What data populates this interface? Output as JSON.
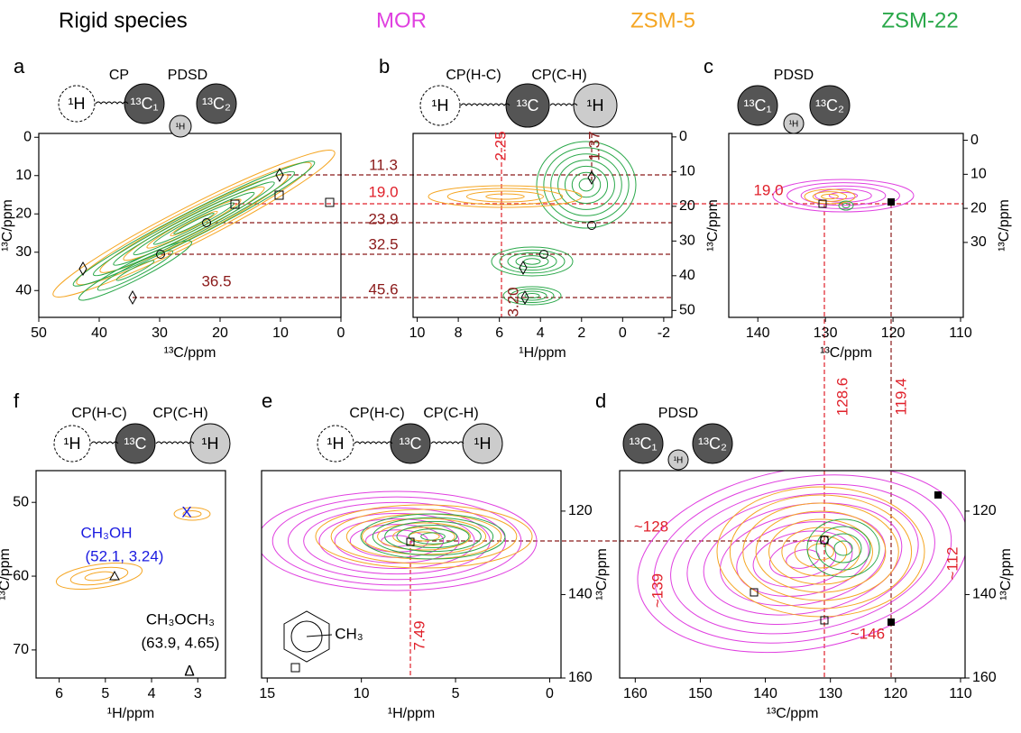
{
  "header": {
    "title": "Rigid species",
    "species": [
      {
        "name": "MOR",
        "color": "#e040e0"
      },
      {
        "name": "ZSM-5",
        "color": "#f5a623"
      },
      {
        "name": "ZSM-22",
        "color": "#2aa84a"
      }
    ]
  },
  "panels": [
    {
      "letter": "a",
      "scheme": [
        "CP",
        "PDSD"
      ],
      "nuclei": [
        "¹H",
        "¹³C₁",
        "¹H",
        "¹³C₂"
      ],
      "xlabel": "¹³C/ppm",
      "ylabel": "¹³C/ppm",
      "xlim": [
        50,
        0
      ],
      "ylim": [
        -1,
        47
      ],
      "xticks": [
        50,
        40,
        30,
        20,
        10,
        0
      ],
      "yticks": [
        0,
        10,
        20,
        30,
        40
      ],
      "annotations": [
        "36.5",
        "11.3",
        "19.0",
        "23.9",
        "32.5",
        "45.6"
      ]
    },
    {
      "letter": "b",
      "scheme": [
        "CP(H-C)",
        "CP(C-H)"
      ],
      "nuclei": [
        "¹H",
        "¹³C",
        "¹H"
      ],
      "xlabel": "¹H/ppm",
      "ylabel": "¹³C/ppm",
      "xlim": [
        10.2,
        -2.4
      ],
      "ylim": [
        -1,
        52
      ],
      "xticks": [
        10,
        8,
        6,
        4,
        2,
        0,
        -2
      ],
      "yticks": [
        0,
        10,
        20,
        30,
        40,
        50
      ],
      "annotations": [
        "2.25",
        "1.37",
        "3.20"
      ]
    },
    {
      "letter": "c",
      "scheme": [
        "PDSD"
      ],
      "nuclei": [
        "¹³C₁",
        "¹H",
        "¹³C₂"
      ],
      "xlabel": "¹³C/ppm",
      "ylabel": "¹³C/ppm",
      "xlim": [
        144.3,
        109.6
      ],
      "ylim": [
        -2,
        52
      ],
      "xticks": [
        140,
        130,
        120,
        110
      ],
      "yticks": [
        0,
        10,
        20,
        30
      ],
      "annotations": [
        "19.0",
        "128.6",
        "119.4"
      ]
    },
    {
      "letter": "f",
      "scheme": [
        "CP(H-C)",
        "CP(C-H)"
      ],
      "nuclei": [
        "¹H",
        "¹³C",
        "¹H"
      ],
      "xlabel": "¹H/ppm",
      "ylabel": "¹³C/ppm",
      "xlim": [
        6.5,
        2.4
      ],
      "ylim": [
        45.7,
        73.8
      ],
      "xticks": [
        6,
        5,
        4,
        3
      ],
      "yticks": [
        50,
        60,
        70
      ],
      "annotations": [
        "CH₃OH",
        "(52.1, 3.24)",
        "CH₃OCH₃",
        "(63.9, 4.65)",
        "X",
        "Δ"
      ]
    },
    {
      "letter": "e",
      "scheme": [
        "CP(H-C)",
        "CP(C-H)"
      ],
      "nuclei": [
        "¹H",
        "¹³C",
        "¹H"
      ],
      "xlabel": "¹H/ppm",
      "ylabel": "¹³C/ppm",
      "xlim": [
        15.3,
        -0.6
      ],
      "ylim": [
        110.3,
        160
      ],
      "xticks": [
        15,
        10,
        5,
        0
      ],
      "yticks": [
        120,
        140,
        160
      ],
      "annotations": [
        "7.49",
        "CH₃"
      ]
    },
    {
      "letter": "d",
      "scheme": [
        "PDSD"
      ],
      "nuclei": [
        "¹³C₁",
        "¹H",
        "¹³C₂"
      ],
      "xlabel": "¹³C/ppm",
      "ylabel": "¹³C/ppm",
      "xlim": [
        162.4,
        109.3
      ],
      "ylim": [
        110.3,
        160
      ],
      "xticks": [
        160,
        150,
        140,
        130,
        120,
        110
      ],
      "yticks": [
        120,
        140,
        160
      ],
      "annotations": [
        "~128",
        "~139",
        "~146",
        "~112"
      ]
    }
  ]
}
